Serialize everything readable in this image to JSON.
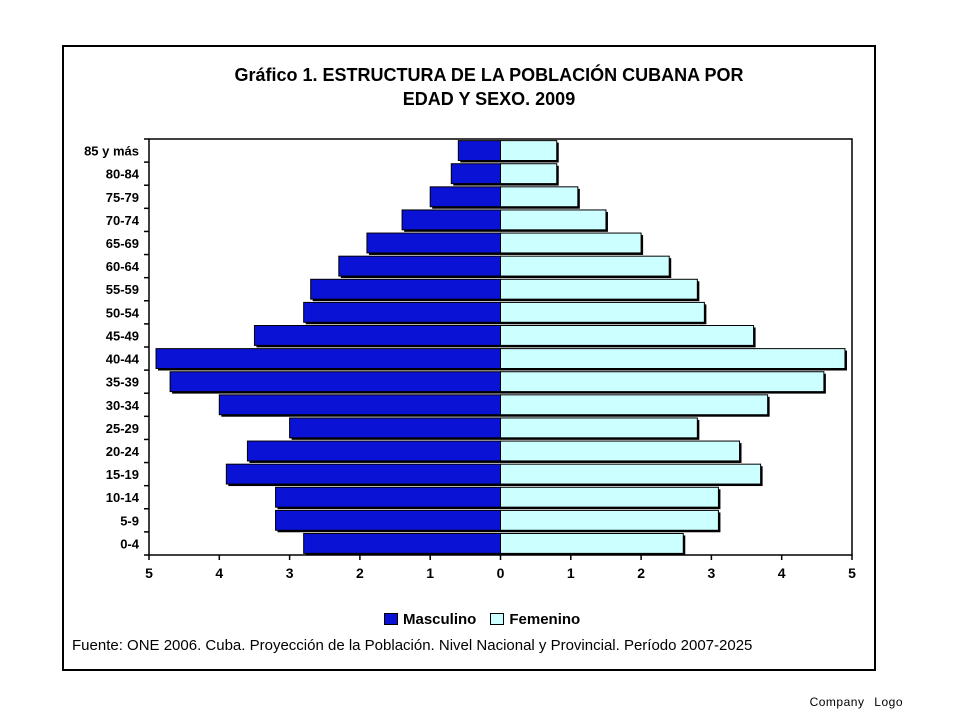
{
  "title_line1": "Gráfico 1. ESTRUCTURA DE LA POBLACIÓN CUBANA POR",
  "title_line2": "EDAD Y SEXO.  2009",
  "source": "Fuente: ONE 2006. Cuba. Proyección de la Población.  Nivel Nacional y Provincial. Período 2007-2025",
  "footer": {
    "company": "Company",
    "logo": "Logo"
  },
  "chart_data": {
    "type": "bar",
    "orientation": "horizontal",
    "layout": "population-pyramid",
    "categories": [
      "85 y más",
      "80-84",
      "75-79",
      "70-74",
      "65-69",
      "60-64",
      "55-59",
      "50-54",
      "45-49",
      "40-44",
      "35-39",
      "30-34",
      "25-29",
      "20-24",
      "15-19",
      "10-14",
      "5-9",
      "0-4"
    ],
    "series": [
      {
        "name": "Masculino",
        "color": "#0a12d6",
        "values": [
          0.6,
          0.7,
          1.0,
          1.4,
          1.9,
          2.3,
          2.7,
          2.8,
          3.5,
          4.9,
          4.7,
          4.0,
          3.0,
          3.6,
          3.9,
          3.2,
          3.2,
          2.8
        ]
      },
      {
        "name": "Femenino",
        "color": "#ccffff",
        "values": [
          0.8,
          0.8,
          1.1,
          1.5,
          2.0,
          2.4,
          2.8,
          2.9,
          3.6,
          4.9,
          4.6,
          3.8,
          2.8,
          3.4,
          3.7,
          3.1,
          3.1,
          2.6
        ]
      }
    ],
    "xlim": [
      -5,
      5
    ],
    "xticks": [
      -5,
      -4,
      -3,
      -2,
      -1,
      0,
      1,
      2,
      3,
      4,
      5
    ],
    "xtick_labels": [
      "5",
      "4",
      "3",
      "2",
      "1",
      "0",
      "1",
      "2",
      "3",
      "4",
      "5"
    ],
    "grid": false,
    "legend_position": "bottom"
  }
}
